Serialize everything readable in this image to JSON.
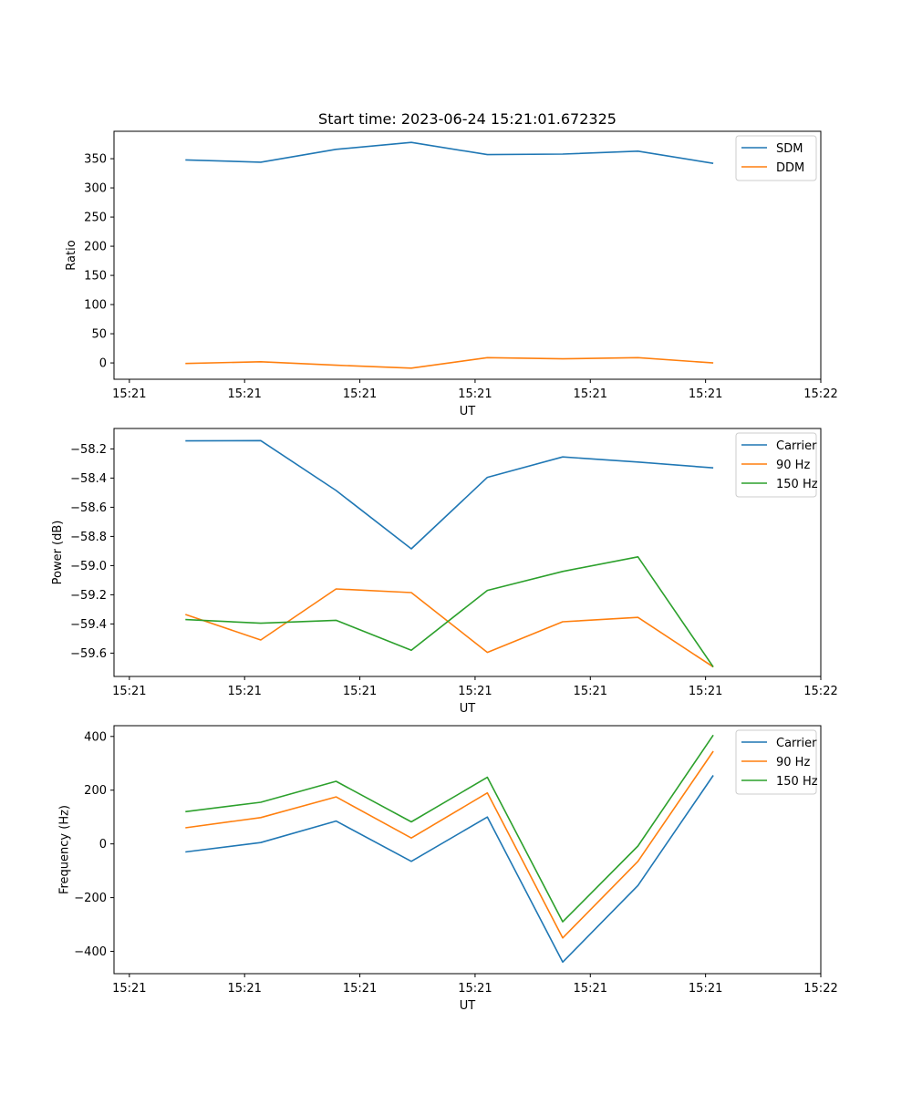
{
  "chart_data": [
    {
      "type": "line",
      "title": "Start time: 2023-06-24 15:21:01.672325",
      "xlabel": "UT",
      "ylabel": "Ratio",
      "xlim": [
        0,
        9.2
      ],
      "ylim": [
        -28,
        397
      ],
      "xticks": [
        0.2,
        1.7,
        3.2,
        4.7,
        6.2,
        7.7,
        9.2
      ],
      "xticklabels": [
        "15:21",
        "15:21",
        "15:21",
        "15:21",
        "15:21",
        "15:21",
        "15:22"
      ],
      "yticks": [
        0,
        50,
        100,
        150,
        200,
        250,
        300,
        350
      ],
      "yticklabels": [
        "0",
        "50",
        "100",
        "150",
        "200",
        "250",
        "300",
        "350"
      ],
      "x": [
        0.93,
        1.91,
        2.89,
        3.87,
        4.86,
        5.84,
        6.82,
        7.8
      ],
      "series": [
        {
          "name": "SDM",
          "color": "#1f77b4",
          "values": [
            348,
            344,
            366,
            378,
            357,
            358,
            363,
            342
          ]
        },
        {
          "name": "DDM",
          "color": "#ff7f0e",
          "values": [
            -1,
            2,
            -4,
            -9,
            9,
            7,
            9,
            0
          ]
        }
      ],
      "grid": false,
      "legend": "top-right"
    },
    {
      "type": "line",
      "title": "",
      "xlabel": "UT",
      "ylabel": "Power (dB)",
      "xlim": [
        0,
        9.2
      ],
      "ylim": [
        -59.76,
        -58.06
      ],
      "xticks": [
        0.2,
        1.7,
        3.2,
        4.7,
        6.2,
        7.7,
        9.2
      ],
      "xticklabels": [
        "15:21",
        "15:21",
        "15:21",
        "15:21",
        "15:21",
        "15:21",
        "15:22"
      ],
      "yticks": [
        -58.2,
        -58.4,
        -58.6,
        -58.8,
        -59.0,
        -59.2,
        -59.4,
        -59.6
      ],
      "yticklabels": [
        "−58.2",
        "−58.4",
        "−58.6",
        "−58.8",
        "−59.0",
        "−59.2",
        "−59.4",
        "−59.6"
      ],
      "x": [
        0.93,
        1.91,
        2.89,
        3.87,
        4.86,
        5.84,
        6.82,
        7.8
      ],
      "series": [
        {
          "name": "Carrier",
          "color": "#1f77b4",
          "values": [
            -58.145,
            -58.143,
            -58.485,
            -58.885,
            -58.395,
            -58.255,
            -58.29,
            -58.33
          ]
        },
        {
          "name": "90 Hz",
          "color": "#ff7f0e",
          "values": [
            -59.335,
            -59.51,
            -59.16,
            -59.185,
            -59.595,
            -59.385,
            -59.355,
            -59.695
          ]
        },
        {
          "name": "150 Hz",
          "color": "#2ca02c",
          "values": [
            -59.37,
            -59.395,
            -59.375,
            -59.58,
            -59.17,
            -59.04,
            -58.94,
            -59.695
          ]
        }
      ],
      "grid": false,
      "legend": "top-right"
    },
    {
      "type": "line",
      "title": "",
      "xlabel": "UT",
      "ylabel": "Frequency (Hz)",
      "xlim": [
        0,
        9.2
      ],
      "ylim": [
        -483,
        440
      ],
      "xticks": [
        0.2,
        1.7,
        3.2,
        4.7,
        6.2,
        7.7,
        9.2
      ],
      "xticklabels": [
        "15:21",
        "15:21",
        "15:21",
        "15:21",
        "15:21",
        "15:21",
        "15:22"
      ],
      "yticks": [
        400,
        200,
        0,
        -200,
        -400
      ],
      "yticklabels": [
        "400",
        "200",
        "0",
        "−200",
        "−400"
      ],
      "x": [
        0.93,
        1.91,
        2.89,
        3.87,
        4.86,
        5.84,
        6.82,
        7.8
      ],
      "series": [
        {
          "name": "Carrier",
          "color": "#1f77b4",
          "values": [
            -30,
            5,
            85,
            -65,
            100,
            -440,
            -155,
            255
          ]
        },
        {
          "name": "90 Hz",
          "color": "#ff7f0e",
          "values": [
            60,
            98,
            175,
            22,
            190,
            -350,
            -65,
            345
          ]
        },
        {
          "name": "150 Hz",
          "color": "#2ca02c",
          "values": [
            120,
            155,
            233,
            82,
            248,
            -290,
            -8,
            405
          ]
        }
      ],
      "grid": false,
      "legend": "top-right"
    }
  ]
}
